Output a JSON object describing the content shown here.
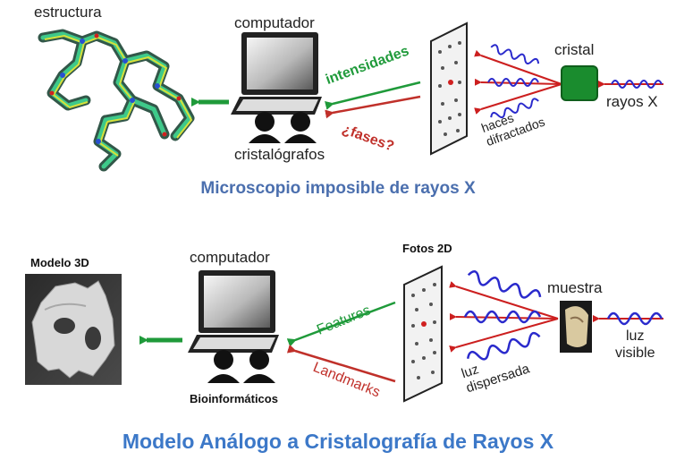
{
  "top": {
    "structure_label": "estructura",
    "computer_label": "computador",
    "people_label": "cristalógrafos",
    "intensities_label": "intensidades",
    "phases_label": "¿fases?",
    "crystal_label": "cristal",
    "xrays_label": "rayos X",
    "diffracted_label_1": "haces",
    "diffracted_label_2": "difractados",
    "caption": "Microscopio imposible de rayos X"
  },
  "bottom": {
    "model_label": "Modelo 3D",
    "computer_label": "computador",
    "people_label": "Bioinformáticos",
    "photos_label": "Fotos 2D",
    "features_label": "Features",
    "landmarks_label": "Landmarks",
    "sample_label": "muestra",
    "light_label_1": "luz",
    "light_label_2": "visible",
    "scattered_label_1": "luz",
    "scattered_label_2": "dispersada",
    "caption": "Modelo Análogo a Cristalografía de Rayos X"
  },
  "colors": {
    "green_arrow": "#1f9a3a",
    "red_arrow": "#c0302a",
    "wave_red": "#cc1f1f",
    "wave_blue": "#2a2acc",
    "crystal": "#1a8c2e",
    "title_top": "#4b6fae",
    "title_bottom": "#3c78c8"
  },
  "icons": [
    "computer-icon",
    "person-icon",
    "detector-plate-icon",
    "molecule-icon",
    "skull-icon",
    "sample-photo-icon"
  ]
}
